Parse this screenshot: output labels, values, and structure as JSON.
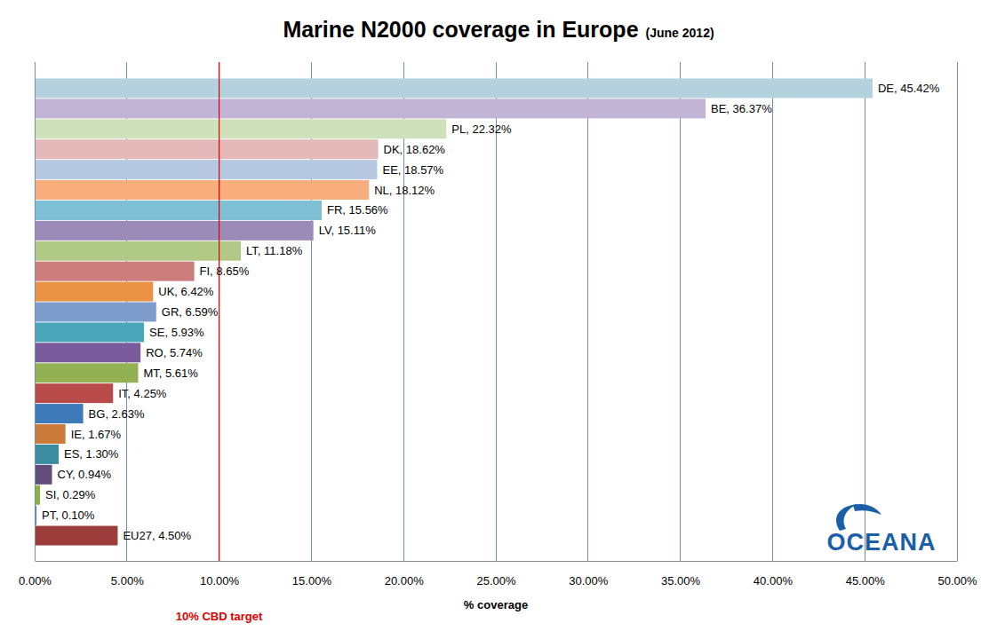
{
  "chart_data": {
    "type": "bar",
    "orientation": "horizontal",
    "title": "Marine N2000 coverage in Europe",
    "subtitle": "(June 2012)",
    "x_label": "% coverage",
    "categories": [
      "DE",
      "BE",
      "PL",
      "DK",
      "EE",
      "NL",
      "FR",
      "LV",
      "LT",
      "FI",
      "UK",
      "GR",
      "SE",
      "RO",
      "MT",
      "IT",
      "BG",
      "IE",
      "ES",
      "CY",
      "SI",
      "PT",
      "EU27"
    ],
    "values": [
      45.42,
      36.37,
      22.32,
      18.62,
      18.57,
      18.12,
      15.56,
      15.11,
      11.18,
      8.65,
      6.42,
      6.59,
      5.93,
      5.74,
      5.61,
      4.25,
      2.63,
      1.67,
      1.3,
      0.94,
      0.29,
      0.1,
      4.5
    ],
    "value_labels": [
      "DE, 45.42%",
      "BE, 36.37%",
      "PL, 22.32%",
      "DK, 18.62%",
      "EE, 18.57%",
      "NL, 18.12%",
      "FR, 15.56%",
      "LV, 15.11%",
      "LT, 11.18%",
      "FI, 8.65%",
      "UK, 6.42%",
      "GR, 6.59%",
      "SE, 5.93%",
      "RO, 5.74%",
      "MT, 5.61%",
      "IT, 4.25%",
      "BG, 2.63%",
      "IE, 1.67%",
      "ES, 1.30%",
      "CY, 0.94%",
      "SI, 0.29%",
      "PT, 0.10%",
      "EU27, 4.50%"
    ],
    "colors": [
      "#b4d2de",
      "#c2b4d4",
      "#cfe1bb",
      "#e3b9b9",
      "#b7c8e1",
      "#f8ad7d",
      "#7fbfd4",
      "#9b8bb9",
      "#b0c987",
      "#cd7c7c",
      "#e99243",
      "#7e9dcd",
      "#4ba6b9",
      "#7a5b9b",
      "#91b152",
      "#b94b4b",
      "#3e79b9",
      "#cd7b3b",
      "#3b8ba1",
      "#614d7b",
      "#8bb141",
      "#4b87c7",
      "#9d3d3b"
    ],
    "xlim": [
      0,
      50
    ],
    "xticks": [
      {
        "value": 0,
        "label": "0.00%"
      },
      {
        "value": 5,
        "label": "5.00%"
      },
      {
        "value": 10,
        "label": "10.00%"
      },
      {
        "value": 15,
        "label": "15.00%"
      },
      {
        "value": 20,
        "label": "20.00%"
      },
      {
        "value": 25,
        "label": "25.00%"
      },
      {
        "value": 30,
        "label": "30.00%"
      },
      {
        "value": 35,
        "label": "35.00%"
      },
      {
        "value": 40,
        "label": "40.00%"
      },
      {
        "value": 45,
        "label": "45.00%"
      },
      {
        "value": 50,
        "label": "50.00%"
      }
    ],
    "grid": true,
    "data_labels": true,
    "tick_labels": "x",
    "annotations": [
      {
        "text": "10% CBD target",
        "value": 10,
        "color": "#e00000"
      },
      {
        "text": "OCEANA",
        "color": "#1b5fa8"
      }
    ]
  }
}
